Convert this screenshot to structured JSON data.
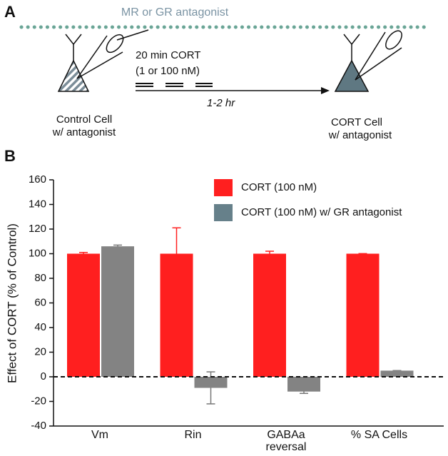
{
  "panel_a": {
    "label": "A",
    "antagonist_label": "MR or GR antagonist",
    "treatment_line1": "20 min CORT",
    "treatment_line2": "(1 or 100 nM)",
    "duration": "1-2 hr",
    "control_cell_line1": "Control Cell",
    "control_cell_line2": "w/ antagonist",
    "cort_cell_line1": "CORT Cell",
    "cort_cell_line2": "w/ antagonist"
  },
  "panel_b_label": "B",
  "chart_data": {
    "type": "bar",
    "y_label": "Effect of CORT (% of Control)",
    "categories": [
      "Vm",
      "Rin",
      "GABAa\nreversal",
      "% SA Cells"
    ],
    "series": [
      {
        "name": "CORT (100 nM)",
        "color": "#ff1f1f",
        "values": [
          100,
          100,
          100,
          100
        ],
        "errors": [
          1,
          21,
          2,
          0
        ]
      },
      {
        "name": "CORT (100 nM) w/ GR antagonist",
        "color": "#838383",
        "values": [
          106,
          -9,
          -12,
          5
        ],
        "errors": [
          1,
          13,
          1.5,
          0
        ]
      }
    ],
    "ylim": [
      -40,
      160
    ],
    "yticks": [
      -40,
      -20,
      0,
      20,
      40,
      60,
      80,
      100,
      120,
      140,
      160
    ],
    "reference_line": 0,
    "legend": "upper right"
  }
}
